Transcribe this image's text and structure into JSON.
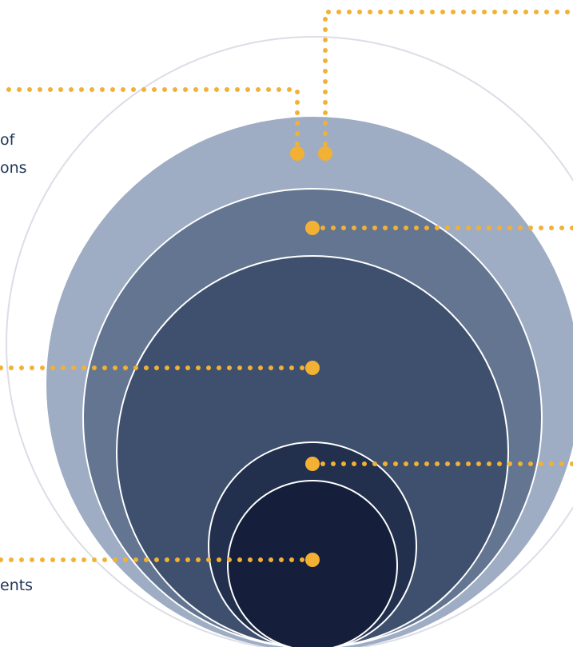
{
  "colors": {
    "background": "#ffffff",
    "outer_ring": "#dcdde6",
    "layer_1": "#9ead c3",
    "layer_2": "#637590",
    "layer_3": "#3e506e",
    "layer_4": "#22304d",
    "layer_5": "#151f3b",
    "connector": "#f2b134",
    "label_text": "#1f3556"
  },
  "labels": {
    "top_left_line_1": "of",
    "top_left_line_2": "ons",
    "bottom_left": "ents"
  }
}
